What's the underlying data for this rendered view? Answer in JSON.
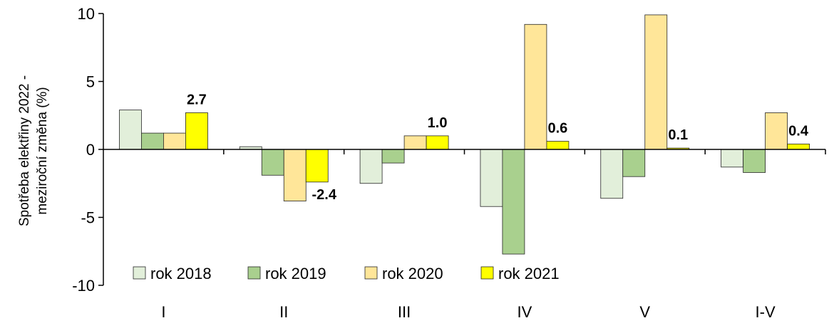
{
  "chart_data": {
    "type": "bar",
    "ylabel_lines": [
      "Spotřeba elektřiny 2022 -",
      "meziroční změna (%)"
    ],
    "ylim": [
      -10,
      10
    ],
    "yticks": [
      -10,
      -5,
      0,
      5,
      10
    ],
    "categories": [
      "I",
      "II",
      "III",
      "IV",
      "V",
      "I-V"
    ],
    "series": [
      {
        "name": "rok 2018",
        "color": "#e2efda",
        "values": [
          2.9,
          0.2,
          -2.5,
          -4.2,
          -3.6,
          -1.3
        ]
      },
      {
        "name": "rok 2019",
        "color": "#a9d08e",
        "values": [
          1.2,
          -1.9,
          -1.0,
          -7.7,
          -2.0,
          -1.7
        ]
      },
      {
        "name": "rok 2020",
        "color": "#ffe699",
        "values": [
          1.2,
          -3.8,
          1.0,
          9.2,
          9.9,
          2.7
        ]
      },
      {
        "name": "rok 2021",
        "color": "#ffff00",
        "values": [
          2.7,
          -2.4,
          1.0,
          0.6,
          0.1,
          0.4
        ]
      }
    ],
    "data_labels": {
      "series": "rok 2021",
      "labels": [
        "2.7",
        "-2.4",
        "1.0",
        "0.6",
        "0.1",
        "0.4"
      ]
    },
    "legend_position": "bottom-left",
    "grid": false
  }
}
